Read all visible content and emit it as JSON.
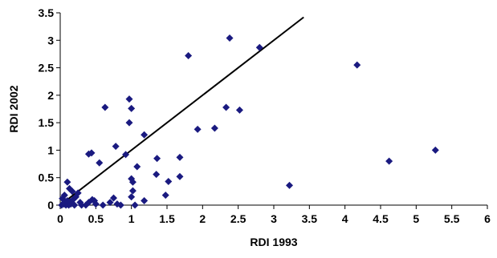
{
  "chart_data": {
    "type": "scatter",
    "title": "",
    "xlabel": "RDI 1993",
    "ylabel": "RDI 2002",
    "xlim": [
      0,
      6
    ],
    "ylim": [
      0,
      3.5
    ],
    "x_ticks": [
      "0",
      "0.5",
      "1",
      "1.5",
      "2",
      "2.5",
      "3",
      "3.5",
      "4",
      "4.5",
      "5",
      "5.5",
      "6"
    ],
    "y_ticks": [
      "0",
      "0.5",
      "1",
      "1.5",
      "2",
      "2.5",
      "3",
      "3.5"
    ],
    "grid": false,
    "legend": "none",
    "marker": "diamond",
    "marker_color": "#1a1a80",
    "line_color": "#000000",
    "trend_line": {
      "x": [
        0,
        3.42
      ],
      "y": [
        0,
        3.42
      ]
    },
    "series": [
      {
        "points": [
          [
            0.02,
            0.0
          ],
          [
            0.05,
            0.02
          ],
          [
            0.07,
            0.05
          ],
          [
            0.08,
            0.0
          ],
          [
            0.1,
            0.08
          ],
          [
            0.12,
            0.0
          ],
          [
            0.15,
            0.02
          ],
          [
            0.18,
            0.1
          ],
          [
            0.03,
            0.12
          ],
          [
            0.06,
            0.18
          ],
          [
            0.2,
            0.0
          ],
          [
            0.22,
            0.15
          ],
          [
            0.25,
            0.22
          ],
          [
            0.28,
            0.05
          ],
          [
            0.3,
            0.0
          ],
          [
            0.1,
            0.42
          ],
          [
            0.13,
            0.3
          ],
          [
            0.17,
            0.25
          ],
          [
            0.06,
            0.05
          ],
          [
            0.14,
            0.06
          ],
          [
            0.36,
            0.0
          ],
          [
            0.4,
            0.05
          ],
          [
            0.45,
            0.1
          ],
          [
            0.48,
            0.08
          ],
          [
            0.5,
            0.02
          ],
          [
            0.6,
            0.0
          ],
          [
            0.7,
            0.05
          ],
          [
            0.75,
            0.13
          ],
          [
            0.8,
            0.02
          ],
          [
            0.85,
            0.0
          ],
          [
            0.4,
            0.93
          ],
          [
            0.44,
            0.95
          ],
          [
            0.55,
            0.77
          ],
          [
            0.78,
            1.07
          ],
          [
            0.92,
            0.92
          ],
          [
            0.63,
            1.78
          ],
          [
            0.97,
            1.5
          ],
          [
            0.97,
            1.93
          ],
          [
            1.0,
            1.76
          ],
          [
            1.18,
            1.28
          ],
          [
            1.0,
            0.48
          ],
          [
            1.02,
            0.42
          ],
          [
            1.08,
            0.7
          ],
          [
            1.02,
            0.26
          ],
          [
            1.0,
            0.15
          ],
          [
            1.05,
            0.0
          ],
          [
            1.18,
            0.08
          ],
          [
            1.35,
            0.56
          ],
          [
            1.36,
            0.85
          ],
          [
            1.48,
            0.18
          ],
          [
            1.52,
            0.43
          ],
          [
            1.68,
            0.52
          ],
          [
            1.68,
            0.87
          ],
          [
            1.8,
            2.72
          ],
          [
            1.93,
            1.38
          ],
          [
            2.17,
            1.4
          ],
          [
            2.33,
            1.78
          ],
          [
            2.38,
            3.04
          ],
          [
            2.52,
            1.73
          ],
          [
            2.8,
            2.87
          ],
          [
            3.22,
            0.36
          ],
          [
            4.17,
            2.55
          ],
          [
            4.62,
            0.8
          ],
          [
            5.27,
            1.0
          ]
        ]
      }
    ]
  }
}
